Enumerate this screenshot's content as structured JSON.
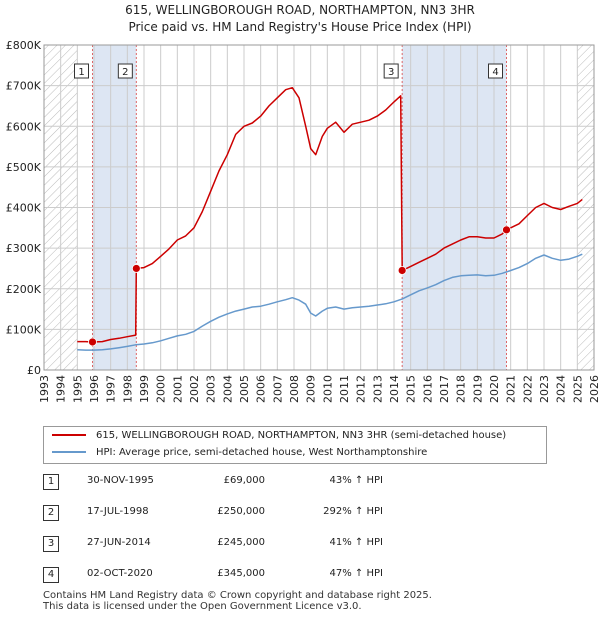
{
  "title": {
    "line1": "615, WELLINGBOROUGH ROAD, NORTHAMPTON, NN3 3HR",
    "line2": "Price paid vs. HM Land Registry's House Price Index (HPI)"
  },
  "colors": {
    "property": "#cc0000",
    "hpi": "#6699cc",
    "shade": "#dde6f3",
    "grid": "#cccccc",
    "marker_line": "#dd6666"
  },
  "legend": {
    "property_label": "615, WELLINGBOROUGH ROAD, NORTHAMPTON, NN3 3HR (semi-detached house)",
    "hpi_label": "HPI: Average price, semi-detached house, West Northamptonshire"
  },
  "sales": [
    {
      "num": "1",
      "date": "30-NOV-1995",
      "price": "£69,000",
      "hpi": "43% ↑ HPI"
    },
    {
      "num": "2",
      "date": "17-JUL-1998",
      "price": "£250,000",
      "hpi": "292% ↑ HPI"
    },
    {
      "num": "3",
      "date": "27-JUN-2014",
      "price": "£245,000",
      "hpi": "41% ↑ HPI"
    },
    {
      "num": "4",
      "date": "02-OCT-2020",
      "price": "£345,000",
      "hpi": "47% ↑ HPI"
    }
  ],
  "footer": {
    "line1": "Contains HM Land Registry data © Crown copyright and database right 2025.",
    "line2": "This data is licensed under the Open Government Licence v3.0."
  },
  "chart_data": {
    "type": "line",
    "ylim": [
      0,
      800000
    ],
    "xlim": [
      1993,
      2026
    ],
    "y_ticks": [
      {
        "value": 0,
        "label": "£0"
      },
      {
        "value": 100000,
        "label": "£100K"
      },
      {
        "value": 200000,
        "label": "£200K"
      },
      {
        "value": 300000,
        "label": "£300K"
      },
      {
        "value": 400000,
        "label": "£400K"
      },
      {
        "value": 500000,
        "label": "£500K"
      },
      {
        "value": 600000,
        "label": "£600K"
      },
      {
        "value": 700000,
        "label": "£700K"
      },
      {
        "value": 800000,
        "label": "£800K"
      }
    ],
    "x_ticks": [
      "1993",
      "1994",
      "1995",
      "1996",
      "1997",
      "1998",
      "1999",
      "2000",
      "2001",
      "2002",
      "2003",
      "2004",
      "2005",
      "2006",
      "2007",
      "2008",
      "2009",
      "2010",
      "2011",
      "2012",
      "2013",
      "2014",
      "2015",
      "2016",
      "2017",
      "2018",
      "2019",
      "2020",
      "2021",
      "2022",
      "2023",
      "2024",
      "2025",
      "2026"
    ],
    "hatch_ranges": [
      [
        1993,
        1995.0
      ],
      [
        2025.0,
        2026
      ]
    ],
    "shaded_ranges": [
      [
        1995.91,
        1998.54
      ],
      [
        2014.49,
        2020.75
      ]
    ],
    "sale_markers": [
      {
        "num": "1",
        "x": 1995.91,
        "y": 69000
      },
      {
        "num": "2",
        "x": 1998.54,
        "y": 250000
      },
      {
        "num": "3",
        "x": 2014.49,
        "y": 245000
      },
      {
        "num": "4",
        "x": 2020.75,
        "y": 345000
      }
    ],
    "series": [
      {
        "name": "615, WELLINGBOROUGH ROAD, NORTHAMPTON, NN3 3HR (semi-detached house)",
        "points": [
          [
            1995.0,
            70000
          ],
          [
            1995.5,
            70000
          ],
          [
            1995.91,
            69000
          ],
          [
            1996.5,
            70000
          ],
          [
            1997.0,
            75000
          ],
          [
            1997.5,
            78000
          ],
          [
            1998.0,
            82000
          ],
          [
            1998.5,
            86000
          ],
          [
            1998.54,
            250000
          ],
          [
            1999.0,
            252000
          ],
          [
            1999.5,
            262000
          ],
          [
            2000.0,
            280000
          ],
          [
            2000.5,
            298000
          ],
          [
            2001.0,
            320000
          ],
          [
            2001.5,
            330000
          ],
          [
            2002.0,
            350000
          ],
          [
            2002.5,
            390000
          ],
          [
            2003.0,
            440000
          ],
          [
            2003.5,
            490000
          ],
          [
            2004.0,
            530000
          ],
          [
            2004.5,
            580000
          ],
          [
            2005.0,
            600000
          ],
          [
            2005.5,
            608000
          ],
          [
            2006.0,
            625000
          ],
          [
            2006.5,
            650000
          ],
          [
            2007.0,
            670000
          ],
          [
            2007.5,
            690000
          ],
          [
            2007.9,
            695000
          ],
          [
            2008.3,
            670000
          ],
          [
            2008.7,
            600000
          ],
          [
            2009.0,
            545000
          ],
          [
            2009.3,
            530000
          ],
          [
            2009.7,
            575000
          ],
          [
            2010.0,
            595000
          ],
          [
            2010.5,
            610000
          ],
          [
            2011.0,
            585000
          ],
          [
            2011.5,
            605000
          ],
          [
            2012.0,
            610000
          ],
          [
            2012.5,
            615000
          ],
          [
            2013.0,
            625000
          ],
          [
            2013.5,
            640000
          ],
          [
            2014.0,
            660000
          ],
          [
            2014.4,
            675000
          ],
          [
            2014.49,
            245000
          ],
          [
            2015.0,
            255000
          ],
          [
            2015.5,
            265000
          ],
          [
            2016.0,
            275000
          ],
          [
            2016.5,
            285000
          ],
          [
            2017.0,
            300000
          ],
          [
            2017.5,
            310000
          ],
          [
            2018.0,
            320000
          ],
          [
            2018.5,
            328000
          ],
          [
            2019.0,
            328000
          ],
          [
            2019.5,
            325000
          ],
          [
            2020.0,
            325000
          ],
          [
            2020.5,
            335000
          ],
          [
            2020.75,
            345000
          ],
          [
            2021.0,
            350000
          ],
          [
            2021.5,
            360000
          ],
          [
            2022.0,
            380000
          ],
          [
            2022.5,
            400000
          ],
          [
            2023.0,
            410000
          ],
          [
            2023.5,
            400000
          ],
          [
            2024.0,
            395000
          ],
          [
            2024.5,
            403000
          ],
          [
            2025.0,
            410000
          ],
          [
            2025.3,
            420000
          ]
        ]
      },
      {
        "name": "HPI: Average price, semi-detached house, West Northamptonshire",
        "points": [
          [
            1995.0,
            50000
          ],
          [
            1995.5,
            49000
          ],
          [
            1996.0,
            49000
          ],
          [
            1996.5,
            50000
          ],
          [
            1997.0,
            52000
          ],
          [
            1997.5,
            55000
          ],
          [
            1998.0,
            58000
          ],
          [
            1998.5,
            62000
          ],
          [
            1999.0,
            64000
          ],
          [
            1999.5,
            67000
          ],
          [
            2000.0,
            72000
          ],
          [
            2000.5,
            78000
          ],
          [
            2001.0,
            84000
          ],
          [
            2001.5,
            88000
          ],
          [
            2002.0,
            95000
          ],
          [
            2002.5,
            108000
          ],
          [
            2003.0,
            120000
          ],
          [
            2003.5,
            130000
          ],
          [
            2004.0,
            138000
          ],
          [
            2004.5,
            145000
          ],
          [
            2005.0,
            150000
          ],
          [
            2005.5,
            155000
          ],
          [
            2006.0,
            157000
          ],
          [
            2006.5,
            162000
          ],
          [
            2007.0,
            168000
          ],
          [
            2007.5,
            173000
          ],
          [
            2007.9,
            178000
          ],
          [
            2008.3,
            172000
          ],
          [
            2008.7,
            162000
          ],
          [
            2009.0,
            140000
          ],
          [
            2009.3,
            133000
          ],
          [
            2009.7,
            145000
          ],
          [
            2010.0,
            152000
          ],
          [
            2010.5,
            155000
          ],
          [
            2011.0,
            150000
          ],
          [
            2011.5,
            153000
          ],
          [
            2012.0,
            155000
          ],
          [
            2012.5,
            157000
          ],
          [
            2013.0,
            160000
          ],
          [
            2013.5,
            163000
          ],
          [
            2014.0,
            168000
          ],
          [
            2014.5,
            175000
          ],
          [
            2015.0,
            185000
          ],
          [
            2015.5,
            195000
          ],
          [
            2016.0,
            202000
          ],
          [
            2016.5,
            210000
          ],
          [
            2017.0,
            220000
          ],
          [
            2017.5,
            228000
          ],
          [
            2018.0,
            232000
          ],
          [
            2018.5,
            233000
          ],
          [
            2019.0,
            234000
          ],
          [
            2019.5,
            232000
          ],
          [
            2020.0,
            233000
          ],
          [
            2020.5,
            238000
          ],
          [
            2021.0,
            245000
          ],
          [
            2021.5,
            252000
          ],
          [
            2022.0,
            262000
          ],
          [
            2022.5,
            275000
          ],
          [
            2023.0,
            283000
          ],
          [
            2023.5,
            275000
          ],
          [
            2024.0,
            270000
          ],
          [
            2024.5,
            273000
          ],
          [
            2025.0,
            280000
          ],
          [
            2025.3,
            285000
          ]
        ]
      }
    ]
  }
}
